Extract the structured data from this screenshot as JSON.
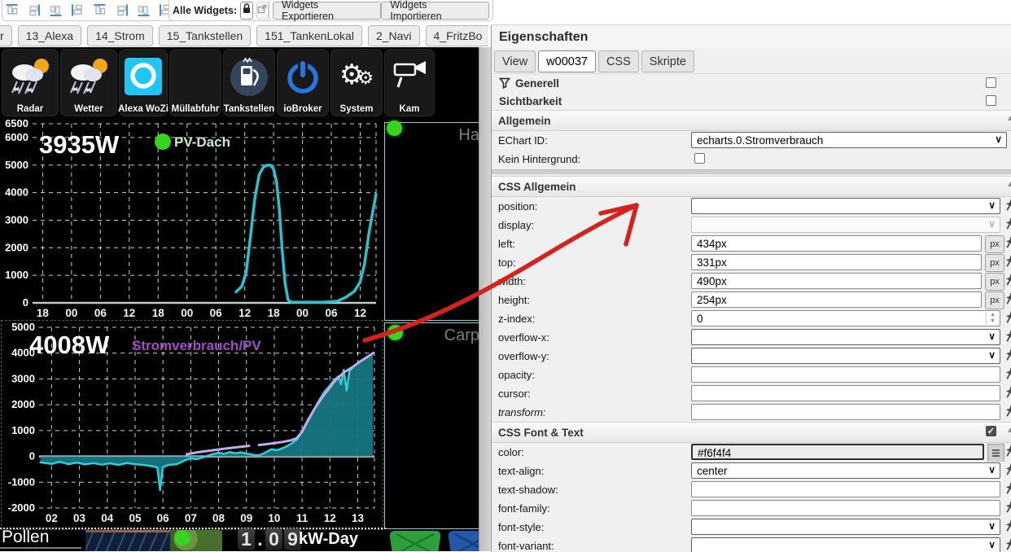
{
  "toolbar": {
    "align_icons": [
      "align-top-icon",
      "align-bottom-icon",
      "align-vertical-center-icon",
      "align-horizontal-center-icon",
      "distribute-horizontal-icon",
      "distribute-vertical-icon",
      "match-size-icon",
      "copy-style-icon",
      "paste-style-icon"
    ],
    "alle_widgets_label": "Alle Widgets:",
    "export_label": "Widgets Exportieren",
    "import_label": "Widgets Importieren"
  },
  "view_tabs": [
    "r",
    "13_Alexa",
    "14_Strom",
    "15_Tankstellen",
    "151_TankenLokal",
    "2_Navi",
    "4_FritzBo"
  ],
  "widget_tiles": [
    {
      "label": "Radar",
      "icon": "weather-icon"
    },
    {
      "label": "Wetter",
      "icon": "weather-icon"
    },
    {
      "label": "Alexa WoZi",
      "icon": "alexa-icon"
    },
    {
      "label": "Müllabfuhr",
      "icon": "none"
    },
    {
      "label": "Tankstellen",
      "icon": "fuel-pump-icon"
    },
    {
      "label": "ioBroker",
      "icon": "power-icon"
    },
    {
      "label": "System",
      "icon": "gears-icon"
    },
    {
      "label": "Kam",
      "icon": "camera-icon"
    }
  ],
  "side_widgets": {
    "haus_label": "Ha",
    "carport_label": "Carp"
  },
  "bottom": {
    "pollen_label": "Pollen",
    "energy_digits": [
      "1",
      ".",
      "0",
      "9"
    ],
    "energy_unit": "kW-Day"
  },
  "chart_data": [
    {
      "type": "line",
      "title": "3935W",
      "legend": {
        "label": "PV-Dach",
        "dot_color": "#35d41f",
        "text_color": "#c9ead1"
      },
      "x_ticks": [
        "18",
        "00",
        "06",
        "12",
        "18",
        "00",
        "06",
        "12",
        "18",
        "00",
        "06",
        "12"
      ],
      "x_tick_pos": [
        0,
        1,
        2,
        3,
        4,
        5,
        6,
        7,
        8,
        9,
        10,
        11
      ],
      "x_domain": [
        -0.35,
        11.55
      ],
      "y_ticks": [
        0,
        1000,
        2000,
        3000,
        4000,
        5000,
        6000,
        6500
      ],
      "y_domain": [
        0,
        6500
      ],
      "zero_line": true,
      "series": [
        {
          "name": "PV-Dach",
          "color": "#27c2cf",
          "width": 3.5,
          "points": [
            [
              6.7,
              400
            ],
            [
              6.9,
              600
            ],
            [
              7.05,
              1100
            ],
            [
              7.2,
              2400
            ],
            [
              7.35,
              3800
            ],
            [
              7.5,
              4650
            ],
            [
              7.65,
              4930
            ],
            [
              7.78,
              5000
            ],
            [
              7.9,
              4990
            ],
            [
              8.0,
              4850
            ],
            [
              8.1,
              4400
            ],
            [
              8.2,
              3400
            ],
            [
              8.3,
              1900
            ],
            [
              8.4,
              700
            ],
            [
              8.5,
              120
            ],
            [
              8.6,
              30
            ],
            [
              9.7,
              25
            ],
            [
              10.2,
              60
            ],
            [
              10.5,
              200
            ],
            [
              10.8,
              420
            ],
            [
              11.0,
              760
            ],
            [
              11.15,
              1400
            ],
            [
              11.3,
              2500
            ],
            [
              11.45,
              3400
            ],
            [
              11.55,
              3935
            ]
          ]
        }
      ]
    },
    {
      "type": "area-line",
      "title": "4008W",
      "legend": {
        "label": "Stromverbrauch/PV",
        "dot_color": null,
        "text_color": "#a34fc3"
      },
      "x_ticks": [
        "02",
        "03",
        "04",
        "05",
        "06",
        "07",
        "08",
        "09",
        "10",
        "11",
        "12",
        "13"
      ],
      "x_tick_pos": [
        2,
        3,
        4,
        5,
        6,
        7,
        8,
        9,
        10,
        11,
        12,
        13
      ],
      "x_domain": [
        1.55,
        13.6
      ],
      "y_ticks": [
        -2000,
        -1000,
        0,
        1000,
        2000,
        3000,
        4000,
        5000
      ],
      "y_domain": [
        -2000,
        5000
      ],
      "zero_line": true,
      "series": [
        {
          "name": "Stromverbrauch",
          "color": "#2bd0d8",
          "width": 2.5,
          "fill": "rgba(23,118,130,0.95)",
          "fill_to_zero": true,
          "points": [
            [
              1.6,
              -230
            ],
            [
              2.0,
              -290
            ],
            [
              2.3,
              -210
            ],
            [
              2.6,
              -300
            ],
            [
              2.9,
              -240
            ],
            [
              3.2,
              -310
            ],
            [
              3.5,
              -260
            ],
            [
              3.8,
              -320
            ],
            [
              4.1,
              -270
            ],
            [
              4.4,
              -330
            ],
            [
              4.7,
              -260
            ],
            [
              5.0,
              -300
            ],
            [
              5.3,
              -330
            ],
            [
              5.6,
              -380
            ],
            [
              5.8,
              -430
            ],
            [
              5.9,
              -1300
            ],
            [
              6.0,
              -420
            ],
            [
              6.2,
              -330
            ],
            [
              6.5,
              -300
            ],
            [
              6.8,
              -150
            ],
            [
              7.0,
              -70
            ],
            [
              7.2,
              -110
            ],
            [
              7.4,
              -50
            ],
            [
              7.6,
              20
            ],
            [
              7.8,
              90
            ],
            [
              8.0,
              140
            ],
            [
              8.2,
              100
            ],
            [
              8.4,
              170
            ],
            [
              8.6,
              120
            ],
            [
              8.8,
              160
            ],
            [
              9.0,
              110
            ],
            [
              9.2,
              70
            ],
            [
              9.35,
              40
            ],
            [
              9.5,
              60
            ],
            [
              9.7,
              160
            ],
            [
              9.9,
              280
            ],
            [
              10.1,
              240
            ],
            [
              10.35,
              340
            ],
            [
              10.6,
              480
            ],
            [
              10.8,
              640
            ],
            [
              11.0,
              950
            ],
            [
              11.2,
              1350
            ],
            [
              11.4,
              1750
            ],
            [
              11.6,
              2150
            ],
            [
              11.8,
              2500
            ],
            [
              12.0,
              2750
            ],
            [
              12.15,
              2950
            ],
            [
              12.3,
              3100
            ],
            [
              12.4,
              2800
            ],
            [
              12.5,
              3350
            ],
            [
              12.6,
              2550
            ],
            [
              12.7,
              3300
            ],
            [
              12.85,
              3480
            ],
            [
              13.0,
              3600
            ],
            [
              13.2,
              3750
            ],
            [
              13.4,
              3900
            ],
            [
              13.55,
              4008
            ]
          ]
        },
        {
          "name": "PV",
          "color": "#c4a9e8",
          "width": 3,
          "segments": [
            [
              [
                6.85,
                80
              ],
              [
                7.3,
                170
              ],
              [
                7.8,
                240
              ],
              [
                8.3,
                310
              ],
              [
                8.8,
                370
              ],
              [
                9.1,
                410
              ]
            ],
            [
              [
                9.45,
                440
              ],
              [
                9.9,
                500
              ],
              [
                10.3,
                560
              ],
              [
                10.6,
                620
              ],
              [
                10.8,
                700
              ],
              [
                11.0,
                950
              ],
              [
                11.2,
                1380
              ],
              [
                11.45,
                1850
              ],
              [
                11.7,
                2250
              ],
              [
                11.95,
                2600
              ],
              [
                12.2,
                2950
              ],
              [
                12.5,
                3250
              ],
              [
                12.8,
                3450
              ],
              [
                13.05,
                3650
              ],
              [
                13.3,
                3820
              ],
              [
                13.55,
                4000
              ]
            ]
          ]
        }
      ]
    }
  ],
  "panel": {
    "title": "Eigenschaften",
    "tabs": [
      {
        "label": "View",
        "active": false
      },
      {
        "label": "w00037",
        "active": true
      },
      {
        "label": "CSS",
        "active": false
      },
      {
        "label": "Skripte",
        "active": false
      }
    ],
    "groups": [
      {
        "label": "Generell",
        "icon": "filter-funnel-icon",
        "checked": false
      },
      {
        "label": "Sichtbarkeit",
        "icon": null,
        "checked": false
      }
    ],
    "allgemein_title": "Allgemein",
    "allgemein_rows": [
      {
        "label": "EChart ID:",
        "type": "select",
        "value": "echarts.0.Stromverbrauch",
        "wide": true,
        "pin": false
      },
      {
        "label": "Kein Hintergrund:",
        "type": "checkbox",
        "checked": false,
        "pin": false
      }
    ],
    "css_allgemein_title": "CSS Allgemein",
    "css_allgemein_rows": [
      {
        "label": "position:",
        "type": "select",
        "value": "",
        "pin": true
      },
      {
        "label": "display:",
        "type": "select",
        "value": "",
        "disabled": true,
        "pin": true
      },
      {
        "label": "left:",
        "type": "input",
        "value": "434px",
        "suffix": "px",
        "pin": true
      },
      {
        "label": "top:",
        "type": "input",
        "value": "331px",
        "suffix": "px",
        "pin": true
      },
      {
        "label": "width:",
        "type": "input",
        "value": "490px",
        "suffix": "px",
        "pin": true
      },
      {
        "label": "height:",
        "type": "input",
        "value": "254px",
        "suffix": "px",
        "pin": true
      },
      {
        "label": "z-index:",
        "type": "number",
        "value": "0",
        "pin": true
      },
      {
        "label": "overflow-x:",
        "type": "select",
        "value": "",
        "pin": true
      },
      {
        "label": "overflow-y:",
        "type": "select",
        "value": "",
        "pin": true
      },
      {
        "label": "opacity:",
        "type": "input",
        "value": "",
        "full": true,
        "pin": true
      },
      {
        "label": "cursor:",
        "type": "input",
        "value": "",
        "full": true,
        "pin": true
      },
      {
        "label": "transform:",
        "type": "input",
        "value": "",
        "full": true,
        "italic": true,
        "pin": true
      }
    ],
    "css_font_title": "CSS Font & Text",
    "css_font_checked": true,
    "css_font_rows": [
      {
        "label": "color:",
        "type": "input",
        "value": "#f6f4f4",
        "focused": true,
        "listbtn": true,
        "pin": true
      },
      {
        "label": "text-align:",
        "type": "select",
        "value": "center",
        "pin": true
      },
      {
        "label": "text-shadow:",
        "type": "input",
        "value": "",
        "full": true,
        "pin": true
      },
      {
        "label": "font-family:",
        "type": "input",
        "value": "",
        "full": true,
        "pin": true
      },
      {
        "label": "font-style:",
        "type": "select",
        "value": "",
        "pin": true
      },
      {
        "label": "font-variant:",
        "type": "select",
        "value": "",
        "pin": true
      }
    ]
  },
  "colors": {
    "selection_border": "#96daeb",
    "led_green": "#35d41f",
    "arrow_red": "#d6221c",
    "pv_line": "#27c2cf",
    "strom_line": "#2bd0d8",
    "strom_fill": "#177682",
    "pv2_line": "#c4a9e8"
  }
}
